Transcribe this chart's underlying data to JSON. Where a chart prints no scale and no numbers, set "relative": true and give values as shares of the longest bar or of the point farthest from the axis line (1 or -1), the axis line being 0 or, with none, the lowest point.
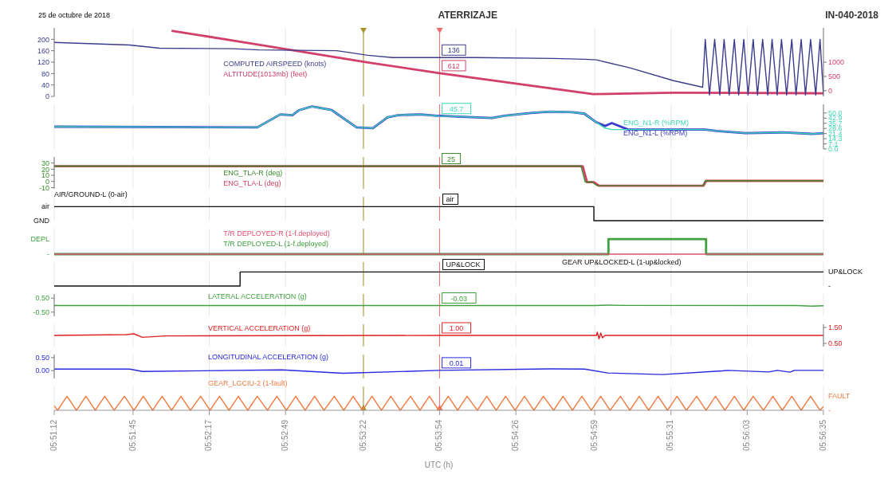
{
  "chart_data": [
    {
      "type": "line",
      "title": "ATERRIZAJE",
      "annotations": [
        "25 de octubre de 2018",
        "IN-040-2018"
      ],
      "series": [
        {
          "name": "COMPUTED AIRSPEED (knots)",
          "color": "#3c3c8c",
          "x": [
            5.8533,
            5.8621,
            5.8656,
            5.8741,
            5.8772,
            5.8863,
            5.8899,
            5.8928,
            5.8983,
            5.9025,
            5.9116,
            5.9152,
            5.9166,
            5.9205,
            5.9256,
            5.929,
            5.9293,
            5.9298,
            5.9304,
            5.931,
            5.9315,
            5.9321,
            5.9327,
            5.9332,
            5.9338,
            5.9343,
            5.9349,
            5.9354,
            5.936,
            5.9366,
            5.9371,
            5.9377,
            5.9382,
            5.9388,
            5.9394,
            5.9399,
            5.9405,
            5.941,
            5.9416,
            5.9422,
            5.9427,
            5.9431
          ],
          "values": [
            189,
            180,
            169,
            167,
            163,
            160,
            144,
            136,
            136,
            136,
            133,
            130,
            128,
            100,
            55,
            32,
            200,
            5,
            200,
            5,
            200,
            5,
            200,
            5,
            200,
            5,
            200,
            5,
            200,
            5,
            200,
            5,
            200,
            5,
            200,
            5,
            200,
            5,
            200,
            5,
            200,
            5
          ],
          "value_labels": [
            null,
            null,
            null,
            null,
            null,
            null,
            null,
            null,
            "136",
            null,
            null,
            null,
            null,
            null,
            null,
            null,
            null,
            null,
            null,
            null,
            null,
            null,
            null,
            null,
            null,
            null,
            null,
            null,
            null,
            null,
            null,
            null,
            null,
            null,
            null,
            null,
            null,
            null,
            null,
            null,
            null,
            null
          ]
        },
        {
          "name": "ALTITUDE(1013mb) (feet)",
          "color": "#d0406a",
          "axis": "y2",
          "x": [
            5.867,
            5.8766,
            5.8899,
            5.8983,
            5.9162,
            5.9256,
            5.934,
            5.9431
          ],
          "values": [
            2100,
            1640,
            990,
            612,
            -120,
            -70,
            -80,
            -90
          ],
          "value_labels": [
            null,
            null,
            null,
            "612",
            null,
            null,
            null,
            null
          ]
        }
      ],
      "ylim": [
        0,
        240
      ],
      "yticks": [
        0,
        40,
        80,
        120,
        160,
        200
      ],
      "y2lim": [
        -200,
        2200
      ],
      "y2ticks": [
        0,
        500,
        1000
      ],
      "xlim": [
        5.8533,
        5.9431
      ],
      "grid": "x",
      "tick_labels": "y",
      "ref_lines": [
        {
          "axis": "x",
          "value": 5.8894,
          "color": "#a89428"
        },
        {
          "axis": "x",
          "value": 5.8983,
          "color": "#f06a6a"
        }
      ]
    },
    {
      "type": "line",
      "series": [
        {
          "name": "ENG_N1-R (%RPM)",
          "color": "#3fd6b8",
          "axis": "y2",
          "x": [
            5.8533,
            5.877,
            5.8797,
            5.8811,
            5.8819,
            5.8834,
            5.8857,
            5.8863,
            5.8886,
            5.8905,
            5.8922,
            5.8934,
            5.8961,
            5.898,
            5.8983,
            5.9004,
            5.9044,
            5.9058,
            5.9089,
            5.9112,
            5.9138,
            5.9152,
            5.9166,
            5.9176,
            5.9184,
            5.9203,
            5.9293,
            5.9306,
            5.934,
            5.9383,
            5.9418,
            5.9431
          ],
          "values": [
            31,
            30,
            48,
            47,
            54,
            59,
            54,
            49,
            30,
            29,
            44,
            47,
            48,
            46,
            45.7,
            45,
            43,
            46,
            50,
            52,
            51,
            49,
            37,
            29,
            27,
            27,
            27,
            25,
            22,
            23,
            21,
            22
          ],
          "value_labels": [
            null,
            null,
            null,
            null,
            null,
            null,
            null,
            null,
            null,
            null,
            null,
            null,
            null,
            null,
            "45.7",
            null,
            null,
            null,
            null,
            null,
            null,
            null,
            null,
            null,
            null,
            null,
            null,
            null,
            null,
            null,
            null,
            null
          ]
        },
        {
          "name": "ENG_N1-L (%RPM)",
          "color": "#3a3acc",
          "axis": "y2",
          "x": [
            5.8533,
            5.877,
            5.8797,
            5.8811,
            5.8819,
            5.8834,
            5.8857,
            5.8863,
            5.8886,
            5.8905,
            5.8922,
            5.8934,
            5.8961,
            5.898,
            5.8983,
            5.9004,
            5.9044,
            5.9058,
            5.9089,
            5.9112,
            5.9138,
            5.9152,
            5.9166,
            5.9176,
            5.9184,
            5.9203,
            5.9293,
            5.9306,
            5.934,
            5.9383,
            5.9418,
            5.9431
          ],
          "values": [
            31,
            30,
            48,
            47,
            54,
            59,
            54,
            49,
            30,
            29,
            44,
            47,
            48,
            46,
            46,
            45,
            43,
            46,
            50,
            52,
            51,
            49,
            37,
            32,
            36,
            27,
            27,
            25,
            22,
            23,
            21,
            22
          ]
        }
      ],
      "y2lim": [
        0,
        62
      ],
      "y2ticks": [
        {
          "value": 0,
          "label": "0.0"
        },
        7.1,
        14.3,
        21.4,
        28.6,
        35.7,
        42.9,
        {
          "value": 50,
          "label": "50.0"
        }
      ],
      "xlim": [
        5.8533,
        5.9431
      ],
      "grid": "x",
      "tick_labels": "y",
      "ref_lines": [
        {
          "axis": "x",
          "value": 5.8894,
          "color": "#a89428"
        },
        {
          "axis": "x",
          "value": 5.8983,
          "color": "#f06a6a"
        }
      ]
    },
    {
      "type": "line",
      "series": [
        {
          "name": "ENG_TLA-R (deg)",
          "color": "#3a8a2a",
          "x": [
            5.8533,
            5.8983,
            5.9148,
            5.9153,
            5.9161,
            5.9167,
            5.929,
            5.9293,
            5.9431
          ],
          "values": [
            25,
            25,
            25,
            -1,
            -1,
            -7,
            -7,
            1,
            1
          ],
          "value_labels": [
            null,
            "25",
            null,
            null,
            null,
            null,
            null,
            null,
            null
          ]
        },
        {
          "name": "ENG_TLA-L (deg)",
          "color": "#d04060",
          "x": [
            5.8533,
            5.915,
            5.9155,
            5.9163,
            5.9169,
            5.9291,
            5.9294,
            5.9431
          ],
          "values": [
            25,
            25,
            -1,
            -1,
            -7,
            -7,
            1,
            1
          ]
        }
      ],
      "ylim": [
        -12,
        40
      ],
      "yticks": [
        -10,
        0,
        10,
        20,
        30
      ],
      "xlim": [
        5.8533,
        5.9431
      ],
      "grid": "x",
      "tick_labels": "y",
      "ref_lines": [
        {
          "axis": "x",
          "value": 5.8894,
          "color": "#a89428"
        },
        {
          "axis": "x",
          "value": 5.8983,
          "color": "#f06a6a"
        }
      ]
    },
    {
      "type": "step",
      "relative": true,
      "annotations": [
        "air",
        "GND",
        "air"
      ],
      "series": [
        {
          "name": "AIR/GROUND-L (0-air)",
          "color": "#111111",
          "x": [
            5.8533,
            5.8983,
            5.9163,
            5.9431
          ],
          "values": [
            1,
            1,
            0,
            0
          ]
        }
      ],
      "xlim": [
        5.8533,
        5.9431
      ],
      "grid": "x",
      "tick_labels": false,
      "ref_lines": [
        {
          "axis": "x",
          "value": 5.8894,
          "color": "#a89428"
        },
        {
          "axis": "x",
          "value": 5.8983,
          "color": "#f06a6a"
        }
      ]
    },
    {
      "type": "step",
      "relative": true,
      "annotations": [
        "DEPL",
        "-"
      ],
      "series": [
        {
          "name": "T/R DEPLOYED-R (1-f.deployed)",
          "color": "#e05070",
          "x": [
            5.8533,
            5.9431
          ],
          "values": [
            0,
            0
          ]
        },
        {
          "name": "T/R DEPLOYED-L (1-f.deployed)",
          "color": "#40a040",
          "x": [
            5.8533,
            5.918,
            5.9294,
            5.9431
          ],
          "values": [
            0,
            1,
            0,
            0
          ]
        }
      ],
      "xlim": [
        5.8533,
        5.9431
      ],
      "grid": "x",
      "tick_labels": false,
      "ref_lines": [
        {
          "axis": "x",
          "value": 5.8894,
          "color": "#a89428"
        },
        {
          "axis": "x",
          "value": 5.8983,
          "color": "#f06a6a"
        }
      ]
    },
    {
      "type": "step",
      "relative": true,
      "annotations": [
        "UP&LOCK",
        "-",
        "UP&LOCK"
      ],
      "series": [
        {
          "name": "GEAR UP&LOCKED-L (1-up&locked)",
          "color": "#111111",
          "axis": "y2",
          "x": [
            5.8533,
            5.875,
            5.8983,
            5.9431
          ],
          "values": [
            0,
            1,
            1,
            1
          ]
        }
      ],
      "xlim": [
        5.8533,
        5.9431
      ],
      "grid": "x",
      "tick_labels": false,
      "ref_lines": [
        {
          "axis": "x",
          "value": 5.8894,
          "color": "#a89428"
        },
        {
          "axis": "x",
          "value": 5.8983,
          "color": "#f06a6a"
        }
      ]
    },
    {
      "type": "line",
      "series": [
        {
          "name": "LATERAL ACCELERATION (g)",
          "color": "#40a040",
          "x": [
            5.8533,
            5.8983,
            5.9164,
            5.9179,
            5.92,
            5.94,
            5.9418,
            5.9431
          ],
          "values": [
            -0.03,
            -0.03,
            -0.03,
            0,
            -0.02,
            -0.03,
            -0.07,
            -0.04
          ],
          "value_labels": [
            null,
            "-0.03",
            null,
            null,
            null,
            null,
            null,
            null
          ]
        }
      ],
      "ylim": [
        -0.8,
        0.8
      ],
      "yticks": [
        {
          "value": -0.5,
          "label": "-0.50"
        },
        {
          "value": 0.5,
          "label": "0.50"
        }
      ],
      "xlim": [
        5.8533,
        5.9431
      ],
      "grid": "x",
      "tick_labels": "y",
      "ref_lines": [
        {
          "axis": "x",
          "value": 5.8894,
          "color": "#a89428"
        },
        {
          "axis": "x",
          "value": 5.8983,
          "color": "#f06a6a"
        }
      ]
    },
    {
      "type": "line",
      "series": [
        {
          "name": "VERTICAL ACCELERATION (g)",
          "color": "#e02020",
          "axis": "y2",
          "x": [
            5.8533,
            5.8617,
            5.8626,
            5.8636,
            5.8663,
            5.8983,
            5.9166,
            5.9167,
            5.9169,
            5.9171,
            5.9173,
            5.9176,
            5.9431
          ],
          "values": [
            1,
            1.05,
            1.1,
            0.88,
            0.97,
            1,
            1,
            1.2,
            0.78,
            1.15,
            0.85,
            1,
            1
          ],
          "value_labels": [
            null,
            null,
            null,
            null,
            null,
            "1.00",
            null,
            null,
            null,
            null,
            null,
            null,
            null
          ]
        }
      ],
      "y2lim": [
        0.3,
        1.7
      ],
      "y2ticks": [
        {
          "value": 0.5,
          "label": "0.50"
        },
        {
          "value": 1.5,
          "label": "1.50"
        }
      ],
      "xlim": [
        5.8533,
        5.9431
      ],
      "grid": "x",
      "tick_labels": "y",
      "ref_lines": [
        {
          "axis": "x",
          "value": 5.8894,
          "color": "#a89428"
        },
        {
          "axis": "x",
          "value": 5.8983,
          "color": "#f06a6a"
        }
      ]
    },
    {
      "type": "line",
      "series": [
        {
          "name": "LONGITUDINAL ACCELERATION (g)",
          "color": "#2828e0",
          "x": [
            5.8533,
            5.8621,
            5.8636,
            5.8799,
            5.887,
            5.8983,
            5.9112,
            5.9152,
            5.9179,
            5.9243,
            5.9313,
            5.9319,
            5.9367,
            5.9377,
            5.9392,
            5.9397,
            5.9431
          ],
          "values": [
            0.06,
            0.06,
            -0.03,
            0.03,
            -0.1,
            0.01,
            0.07,
            0.06,
            -0.09,
            -0.15,
            -0.01,
            0.01,
            -0.05,
            0.01,
            -0.06,
            0.01,
            0.01
          ],
          "value_labels": [
            null,
            null,
            null,
            null,
            null,
            "0.01",
            null,
            null,
            null,
            null,
            null,
            null,
            null,
            null,
            null,
            null,
            null
          ]
        }
      ],
      "ylim": [
        -0.3,
        0.62
      ],
      "yticks": [
        {
          "value": 0,
          "label": "0.00"
        },
        {
          "value": 0.5,
          "label": "0.50"
        }
      ],
      "xlim": [
        5.8533,
        5.9431
      ],
      "grid": "x",
      "tick_labels": "y",
      "ref_lines": [
        {
          "axis": "x",
          "value": 5.8894,
          "color": "#a89428"
        },
        {
          "axis": "x",
          "value": 5.8983,
          "color": "#f06a6a"
        }
      ]
    },
    {
      "type": "line",
      "relative": true,
      "xlabel": "UTC (h)",
      "annotations": [
        "FAULT",
        "-"
      ],
      "series": [
        {
          "name": "GEAR_LGCIU-2 (1-fault)",
          "color": "#f07a40",
          "axis": "y2",
          "x": [
            5.8533,
            5.8537,
            5.8548,
            5.8559,
            5.857,
            5.8581,
            5.8592,
            5.8603,
            5.8615,
            5.8626,
            5.8637,
            5.8648,
            5.8659,
            5.867,
            5.8681,
            5.8692,
            5.8704,
            5.8715,
            5.8726,
            5.8737,
            5.8748,
            5.8759,
            5.877,
            5.8782,
            5.8793,
            5.8804,
            5.8815,
            5.8826,
            5.8837,
            5.8848,
            5.886,
            5.8871,
            5.8882,
            5.8893,
            5.8904,
            5.8915,
            5.8926,
            5.8937,
            5.8949,
            5.896,
            5.8971,
            5.8982,
            5.8993,
            5.9004,
            5.9015,
            5.9027,
            5.9038,
            5.9049,
            5.906,
            5.9071,
            5.9082,
            5.9093,
            5.9104,
            5.9116,
            5.9127,
            5.9138,
            5.9149,
            5.916,
            5.9171,
            5.9182,
            5.9194,
            5.9205,
            5.9216,
            5.9227,
            5.9238,
            5.9249,
            5.926,
            5.9271,
            5.9283,
            5.9294,
            5.9305,
            5.9316,
            5.9327,
            5.9338,
            5.9349,
            5.9361,
            5.9372,
            5.9383,
            5.9394,
            5.9405,
            5.9416,
            5.9427,
            5.9431
          ],
          "values": [
            0.32,
            0,
            1,
            0,
            1,
            0,
            1,
            0,
            1,
            0,
            1,
            0,
            1,
            0,
            1,
            0,
            1,
            0,
            1,
            0,
            1,
            0,
            1,
            0,
            1,
            0,
            1,
            0,
            1,
            0,
            1,
            0,
            1,
            0,
            1,
            0,
            1,
            0,
            1,
            0,
            1,
            0,
            1,
            0,
            1,
            0,
            1,
            0,
            1,
            0,
            1,
            0,
            1,
            0,
            1,
            0,
            1,
            0,
            1,
            0,
            1,
            0,
            1,
            0,
            1,
            0,
            1,
            0,
            1,
            0,
            1,
            0,
            1,
            0,
            1,
            0,
            1,
            0,
            1,
            0,
            1,
            0,
            0.27
          ]
        }
      ],
      "xlim": [
        5.8533,
        5.9431
      ],
      "xticks": [
        {
          "value": 5.8533,
          "label": "05:51:12"
        },
        {
          "value": 5.8625,
          "label": "05:51:45"
        },
        {
          "value": 5.8714,
          "label": "05:52:17"
        },
        {
          "value": 5.8803,
          "label": "05:52:49"
        },
        {
          "value": 5.8894,
          "label": "05:53:22"
        },
        {
          "value": 5.8983,
          "label": "05:53:54"
        },
        {
          "value": 5.9072,
          "label": "05:54:26"
        },
        {
          "value": 5.9164,
          "label": "05:54:59"
        },
        {
          "value": 5.9253,
          "label": "05:55:31"
        },
        {
          "value": 5.9342,
          "label": "05:56:03"
        },
        {
          "value": 5.9431,
          "label": "05:56:35"
        }
      ],
      "grid": "x",
      "tick_labels": "x",
      "ref_lines": [
        {
          "axis": "x",
          "value": 5.8894,
          "color": "#a89428"
        },
        {
          "axis": "x",
          "value": 5.8983,
          "color": "#f06a6a"
        }
      ]
    }
  ]
}
